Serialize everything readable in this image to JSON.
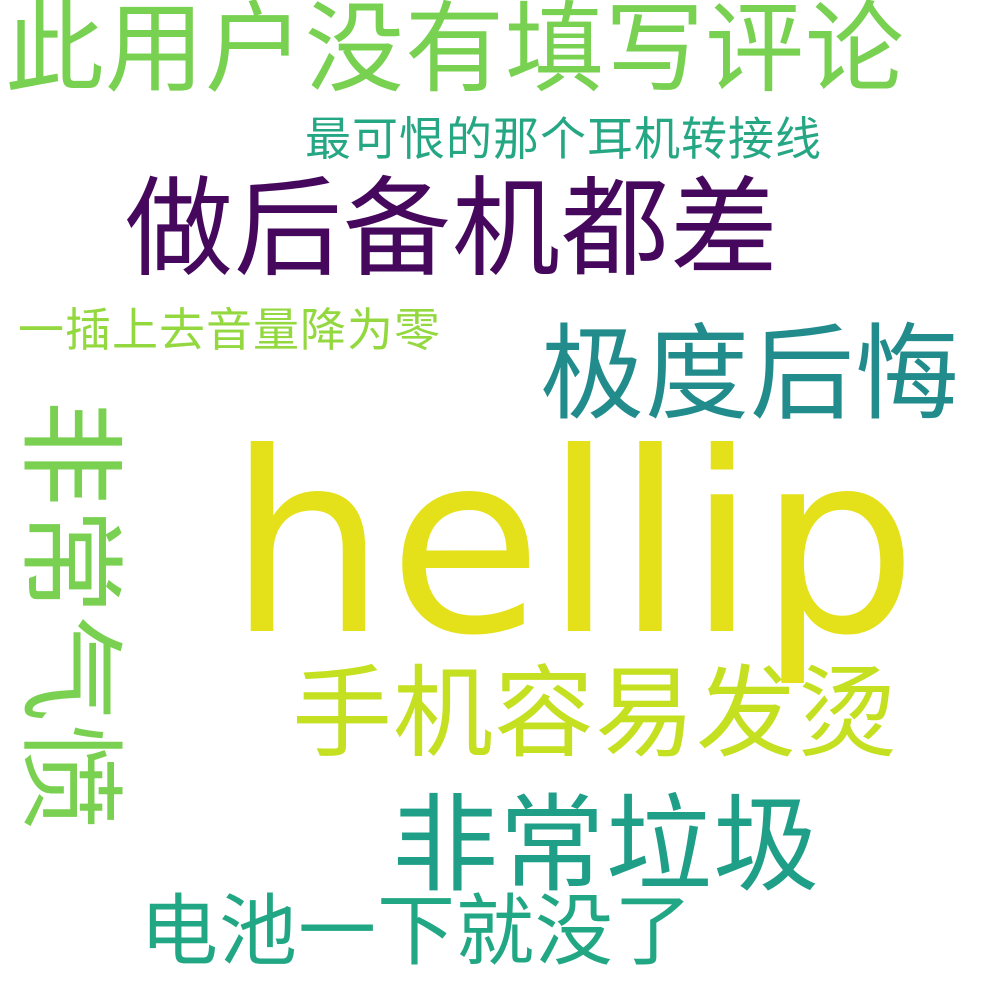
{
  "words": [
    {
      "text": "hellip",
      "color": "#e4e11b"
    },
    {
      "text": "此用户没有填写评论",
      "color": "#79d151"
    },
    {
      "text": "最可恨的那个耳机转接线",
      "color": "#26a784"
    },
    {
      "text": "做后备机都差",
      "color": "#46085c"
    },
    {
      "text": "一插上去音量降为零",
      "color": "#94d840"
    },
    {
      "text": "极度后悔",
      "color": "#228c8d"
    },
    {
      "text": "手机容易发烫",
      "color": "#c5e021"
    },
    {
      "text": "非常垃圾",
      "color": "#1f9f88"
    },
    {
      "text": "电池一下就没了",
      "color": "#22a784"
    },
    {
      "text": "非常气愤",
      "color": "#7ad151"
    }
  ]
}
